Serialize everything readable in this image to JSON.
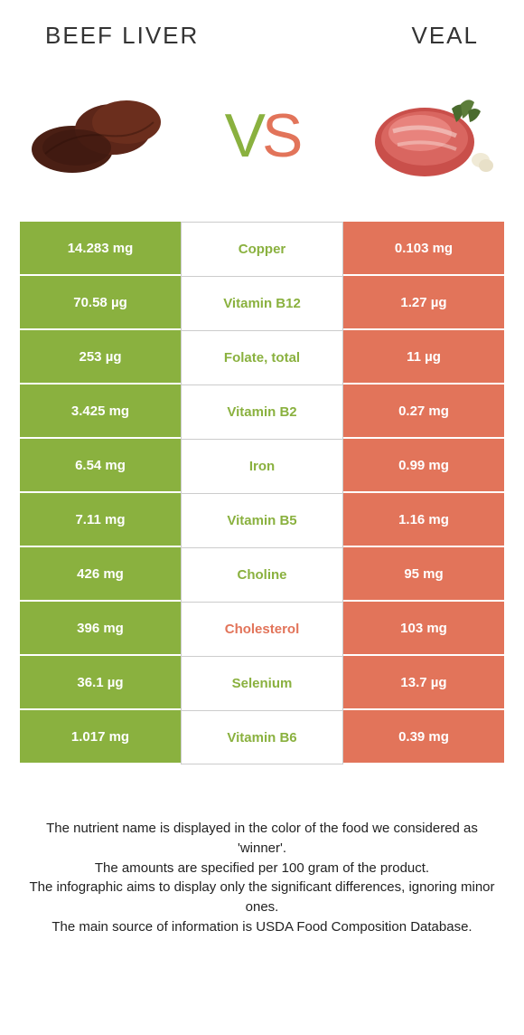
{
  "header": {
    "left_title": "Beef Liver",
    "right_title": "Veal"
  },
  "vs": {
    "v_letter": "V",
    "s_letter": "S",
    "v_color": "#8ab13f",
    "s_color": "#e2745a"
  },
  "colors": {
    "left_bg": "#8ab13f",
    "right_bg": "#e2745a",
    "left_text": "#ffffff",
    "right_text": "#ffffff",
    "mid_border": "#cccccc",
    "nutrient_green": "#8ab13f",
    "nutrient_red": "#e2745a"
  },
  "rows": [
    {
      "left": "14.283 mg",
      "mid": "Copper",
      "right": "0.103 mg",
      "winner": "left"
    },
    {
      "left": "70.58 µg",
      "mid": "Vitamin B12",
      "right": "1.27 µg",
      "winner": "left"
    },
    {
      "left": "253 µg",
      "mid": "Folate, total",
      "right": "11 µg",
      "winner": "left"
    },
    {
      "left": "3.425 mg",
      "mid": "Vitamin B2",
      "right": "0.27 mg",
      "winner": "left"
    },
    {
      "left": "6.54 mg",
      "mid": "Iron",
      "right": "0.99 mg",
      "winner": "left"
    },
    {
      "left": "7.11 mg",
      "mid": "Vitamin B5",
      "right": "1.16 mg",
      "winner": "left"
    },
    {
      "left": "426 mg",
      "mid": "Choline",
      "right": "95 mg",
      "winner": "left"
    },
    {
      "left": "396 mg",
      "mid": "Cholesterol",
      "right": "103 mg",
      "winner": "right"
    },
    {
      "left": "36.1 µg",
      "mid": "Selenium",
      "right": "13.7 µg",
      "winner": "left"
    },
    {
      "left": "1.017 mg",
      "mid": "Vitamin B6",
      "right": "0.39 mg",
      "winner": "left"
    }
  ],
  "footer": {
    "line1": "The nutrient name is displayed in the color of the food we considered as 'winner'.",
    "line2": "The amounts are specified per 100 gram of the product.",
    "line3": "The infographic aims to display only the significant differences, ignoring minor ones.",
    "line4": "The main source of information is USDA Food Composition Database."
  }
}
